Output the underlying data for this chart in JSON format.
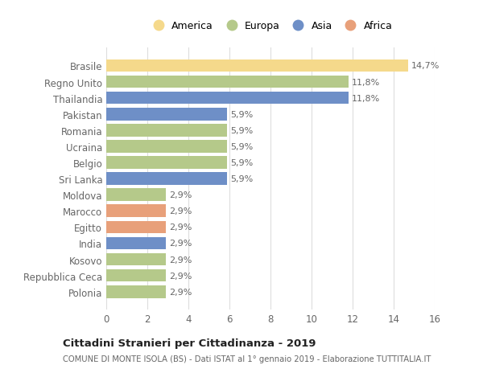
{
  "categories": [
    "Polonia",
    "Repubblica Ceca",
    "Kosovo",
    "India",
    "Egitto",
    "Marocco",
    "Moldova",
    "Sri Lanka",
    "Belgio",
    "Ucraina",
    "Romania",
    "Pakistan",
    "Thailandia",
    "Regno Unito",
    "Brasile"
  ],
  "values": [
    2.9,
    2.9,
    2.9,
    2.9,
    2.9,
    2.9,
    2.9,
    5.9,
    5.9,
    5.9,
    5.9,
    5.9,
    11.8,
    11.8,
    14.7
  ],
  "labels": [
    "2,9%",
    "2,9%",
    "2,9%",
    "2,9%",
    "2,9%",
    "2,9%",
    "2,9%",
    "5,9%",
    "5,9%",
    "5,9%",
    "5,9%",
    "5,9%",
    "11,8%",
    "11,8%",
    "14,7%"
  ],
  "colors": [
    "#b5c98a",
    "#b5c98a",
    "#b5c98a",
    "#6e8fc7",
    "#e8a07a",
    "#e8a07a",
    "#b5c98a",
    "#6e8fc7",
    "#b5c98a",
    "#b5c98a",
    "#b5c98a",
    "#6e8fc7",
    "#6e8fc7",
    "#b5c98a",
    "#f5d98b"
  ],
  "continent_colors": {
    "America": "#f5d98b",
    "Europa": "#b5c98a",
    "Asia": "#6e8fc7",
    "Africa": "#e8a07a"
  },
  "legend_labels": [
    "America",
    "Europa",
    "Asia",
    "Africa"
  ],
  "title": "Cittadini Stranieri per Cittadinanza - 2019",
  "subtitle": "COMUNE DI MONTE ISOLA (BS) - Dati ISTAT al 1° gennaio 2019 - Elaborazione TUTTITALIA.IT",
  "xlim": [
    0,
    16
  ],
  "xticks": [
    0,
    2,
    4,
    6,
    8,
    10,
    12,
    14,
    16
  ],
  "background_color": "#ffffff",
  "grid_color": "#dddddd"
}
